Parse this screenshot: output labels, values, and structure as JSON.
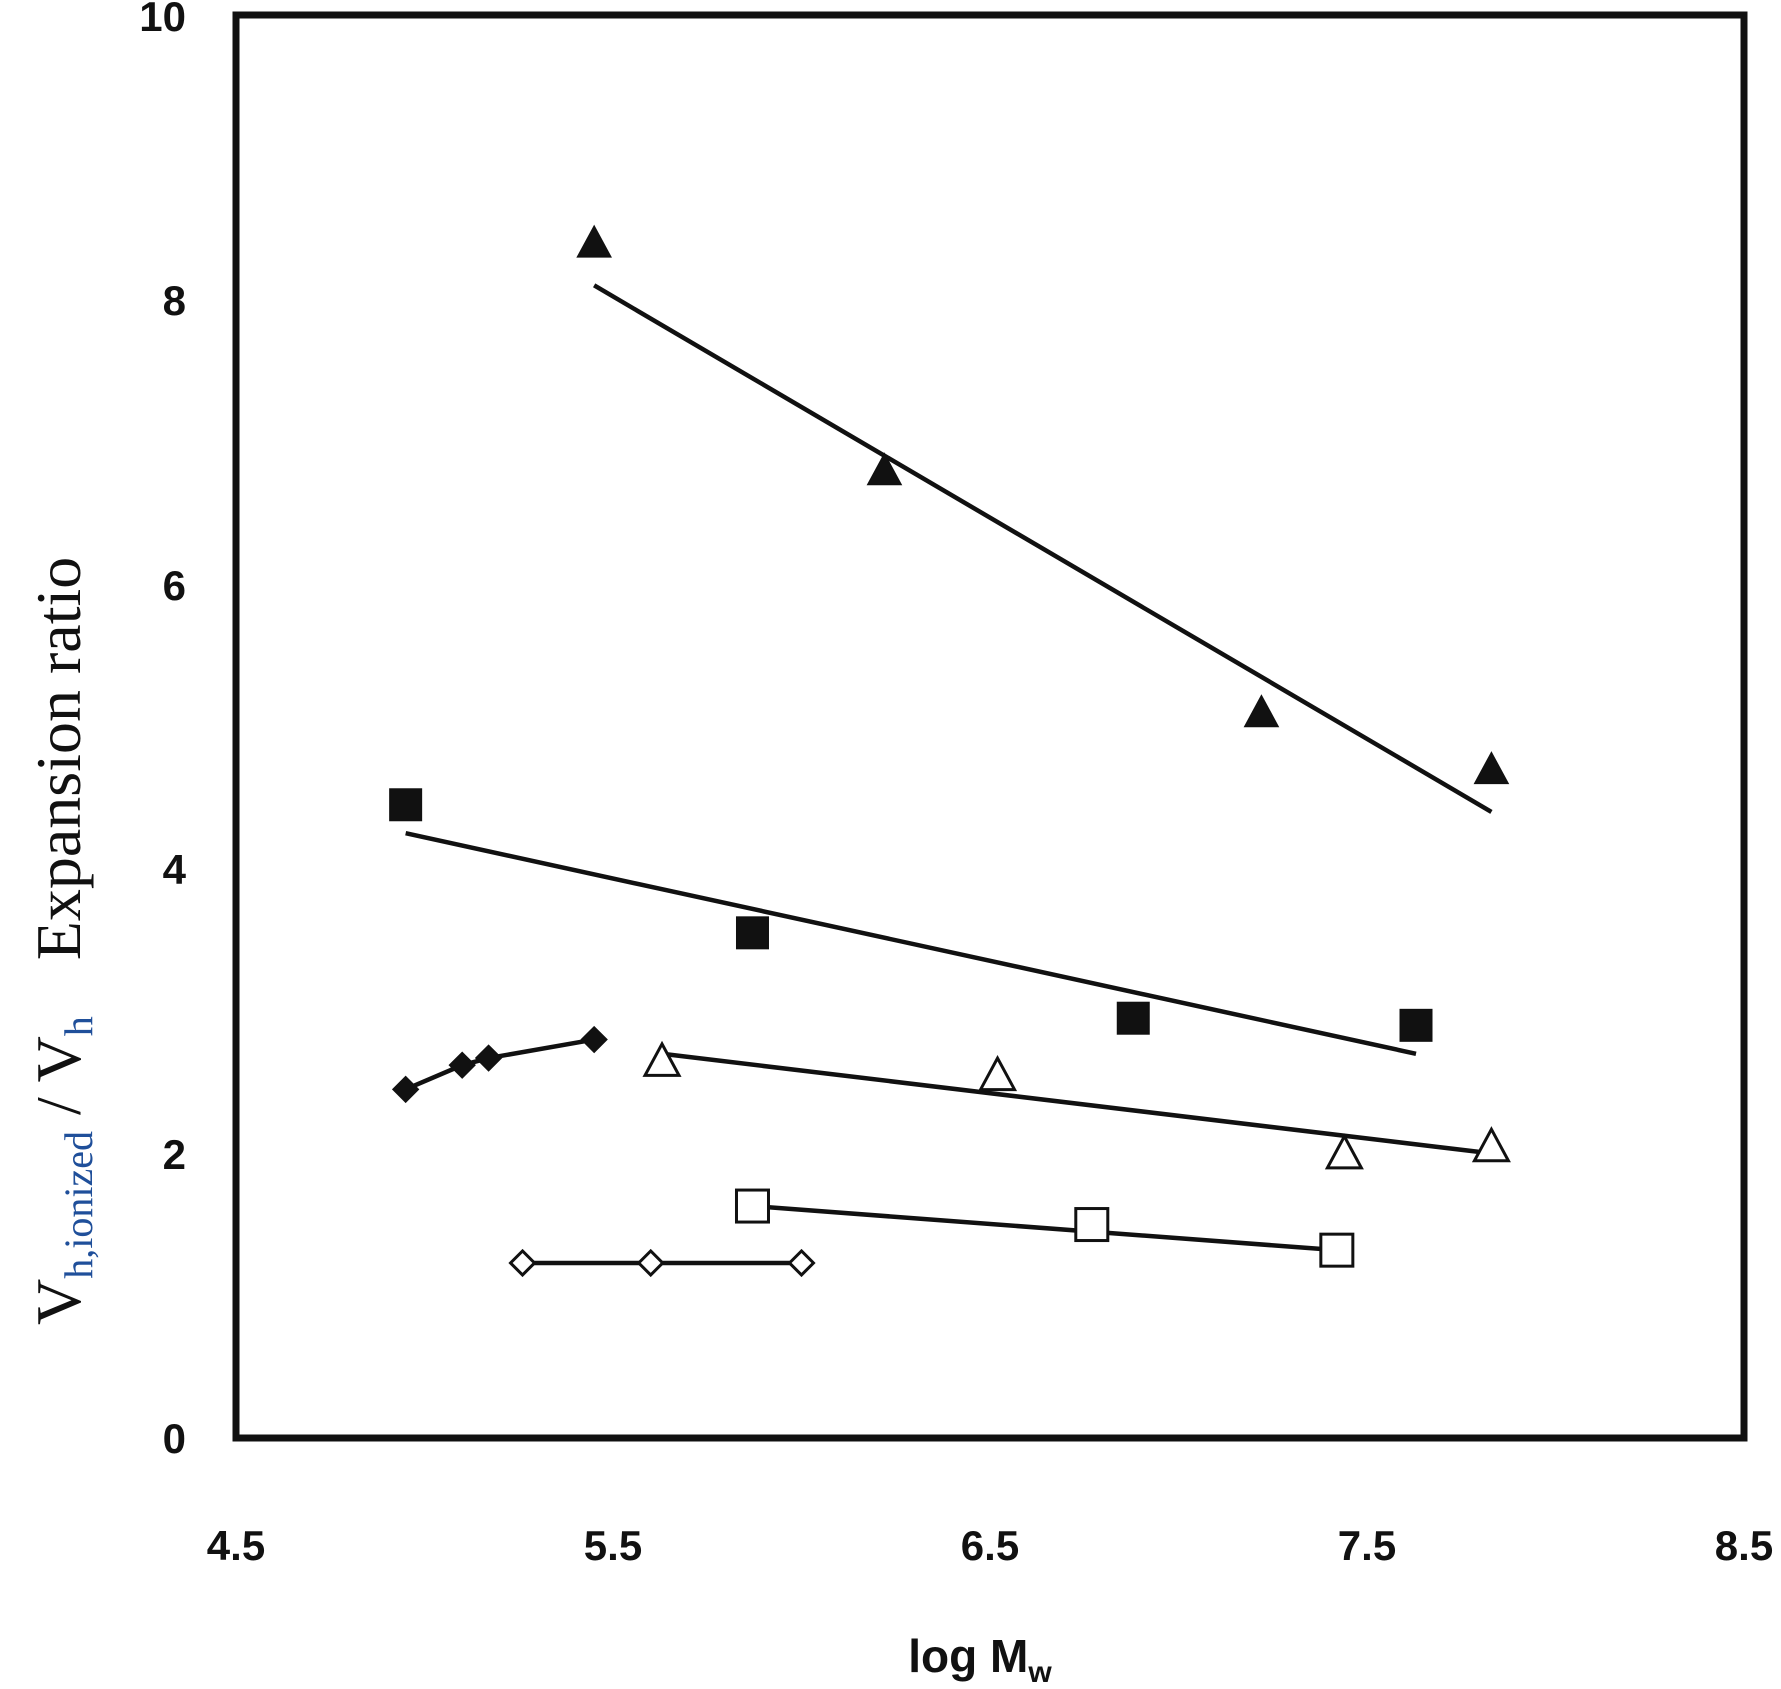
{
  "chart_data": {
    "type": "scatter",
    "title": "",
    "xlabel": {
      "main": "log M",
      "subscript": "w"
    },
    "ylabel": {
      "main": "V",
      "sub1": "h,ionized",
      "slash": " / V",
      "sub2": "h",
      "words": "Expansion ratio"
    },
    "xlim": [
      4.5,
      8.5
    ],
    "ylim": [
      0,
      10
    ],
    "xticks": [
      "4.5",
      "5.5",
      "6.5",
      "7.5",
      "8.5"
    ],
    "yticks": [
      "0",
      "2",
      "4",
      "6",
      "8",
      "10"
    ],
    "grid": false,
    "colors": {
      "ink": "#111111",
      "axis": "#111111",
      "fill_open": "#ffffff"
    },
    "series": [
      {
        "name": "filled-triangle",
        "marker": "triangle",
        "filled": true,
        "x": [
          5.45,
          6.22,
          7.22,
          7.83
        ],
        "y": [
          8.4,
          6.8,
          5.1,
          4.7
        ],
        "fit": {
          "x": [
            5.45,
            7.83
          ],
          "y": [
            8.1,
            4.4
          ]
        }
      },
      {
        "name": "filled-square",
        "marker": "square",
        "filled": true,
        "x": [
          4.95,
          5.87,
          6.88,
          7.63
        ],
        "y": [
          4.45,
          3.55,
          2.95,
          2.9
        ],
        "fit": {
          "x": [
            4.95,
            7.63
          ],
          "y": [
            4.25,
            2.7
          ]
        }
      },
      {
        "name": "open-triangle",
        "marker": "triangle",
        "filled": false,
        "x": [
          5.63,
          6.52,
          7.44,
          7.83
        ],
        "y": [
          2.65,
          2.55,
          2.0,
          2.05
        ],
        "fit": {
          "x": [
            5.63,
            7.83
          ],
          "y": [
            2.7,
            2.0
          ]
        }
      },
      {
        "name": "filled-diamond",
        "marker": "diamond",
        "filled": true,
        "connected": true,
        "x": [
          4.95,
          5.1,
          5.17,
          5.45
        ],
        "y": [
          2.45,
          2.62,
          2.67,
          2.8
        ]
      },
      {
        "name": "open-square",
        "marker": "square",
        "filled": false,
        "x": [
          5.87,
          6.77,
          7.42
        ],
        "y": [
          1.63,
          1.5,
          1.32
        ],
        "fit": {
          "x": [
            5.87,
            7.42
          ],
          "y": [
            1.63,
            1.32
          ]
        }
      },
      {
        "name": "open-diamond",
        "marker": "diamond",
        "filled": false,
        "connected": true,
        "x": [
          5.26,
          5.6,
          6.0
        ],
        "y": [
          1.23,
          1.23,
          1.23
        ]
      }
    ]
  }
}
